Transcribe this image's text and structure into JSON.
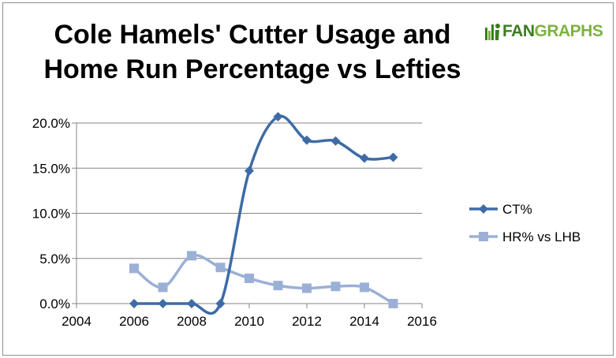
{
  "brand": {
    "logo_text_a": "FAN",
    "logo_text_b": "GRAPHS",
    "colors": {
      "primary": "#3a7d1e",
      "secondary": "#7cb342"
    }
  },
  "chart_data": {
    "type": "line",
    "title_line1": "Cole Hamels' Cutter Usage and",
    "title_line2": "Home Run Percentage vs Lefties",
    "xlabel": "",
    "ylabel": "",
    "xlim": [
      2004,
      2016
    ],
    "ylim": [
      0,
      20
    ],
    "x_ticks": [
      2004,
      2006,
      2008,
      2010,
      2012,
      2014,
      2016
    ],
    "y_ticks": [
      0,
      5,
      10,
      15,
      20
    ],
    "y_tick_labels": [
      "0.0%",
      "5.0%",
      "10.0%",
      "15.0%",
      "20.0%"
    ],
    "grid": "horizontal",
    "legend_position": "right",
    "series": [
      {
        "name": "CT%",
        "marker": "diamond",
        "color": "#3e6ba6",
        "smooth": true,
        "x": [
          2006,
          2007,
          2008,
          2009,
          2010,
          2011,
          2012,
          2013,
          2014,
          2015
        ],
        "values": [
          0.0,
          0.0,
          0.0,
          0.0,
          14.7,
          20.7,
          18.1,
          18.0,
          16.1,
          16.2
        ]
      },
      {
        "name": "HR% vs LHB",
        "marker": "square",
        "color": "#9bb0d6",
        "smooth": true,
        "x": [
          2006,
          2007,
          2008,
          2009,
          2010,
          2011,
          2012,
          2013,
          2014,
          2015
        ],
        "values": [
          3.9,
          1.8,
          5.3,
          4.0,
          2.8,
          2.0,
          1.7,
          1.9,
          1.8,
          0.0
        ]
      }
    ]
  }
}
